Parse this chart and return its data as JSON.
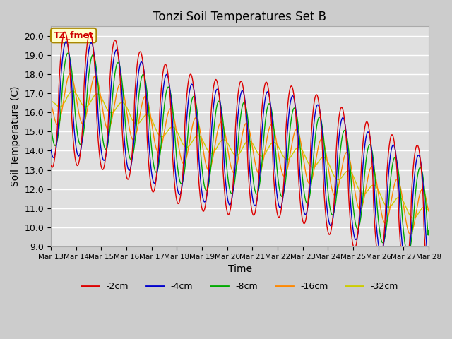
{
  "title": "Tonzi Soil Temperatures Set B",
  "xlabel": "Time",
  "ylabel": "Soil Temperature (C)",
  "ylim": [
    9.0,
    20.5
  ],
  "yticks": [
    9.0,
    10.0,
    11.0,
    12.0,
    13.0,
    14.0,
    15.0,
    16.0,
    17.0,
    18.0,
    19.0,
    20.0
  ],
  "bg_color": "#e8e8e8",
  "line_colors": {
    "-2cm": "#dd0000",
    "-4cm": "#0000cc",
    "-8cm": "#00aa00",
    "-16cm": "#ff8800",
    "-32cm": "#cccc00"
  },
  "legend_labels": [
    "-2cm",
    "-4cm",
    "-8cm",
    "-16cm",
    "-32cm"
  ],
  "annotation_text": "TZ_fmet",
  "annotation_color": "#cc0000",
  "annotation_bg": "#ffffcc",
  "annotation_border": "#aa8800",
  "xtick_positions": [
    13,
    14,
    15,
    16,
    17,
    18,
    19,
    20,
    21,
    22,
    23,
    24,
    25,
    26,
    27,
    28
  ],
  "xtick_labels": [
    "Mar 13",
    "Mar 14",
    "Mar 15",
    "Mar 16",
    "Mar 17",
    "Mar 18",
    "Mar 19",
    "Mar 20",
    "Mar 21",
    "Mar 22",
    "Mar 23",
    "Mar 24",
    "Mar 25",
    "Mar 26",
    "Mar 27",
    "Mar 28"
  ]
}
